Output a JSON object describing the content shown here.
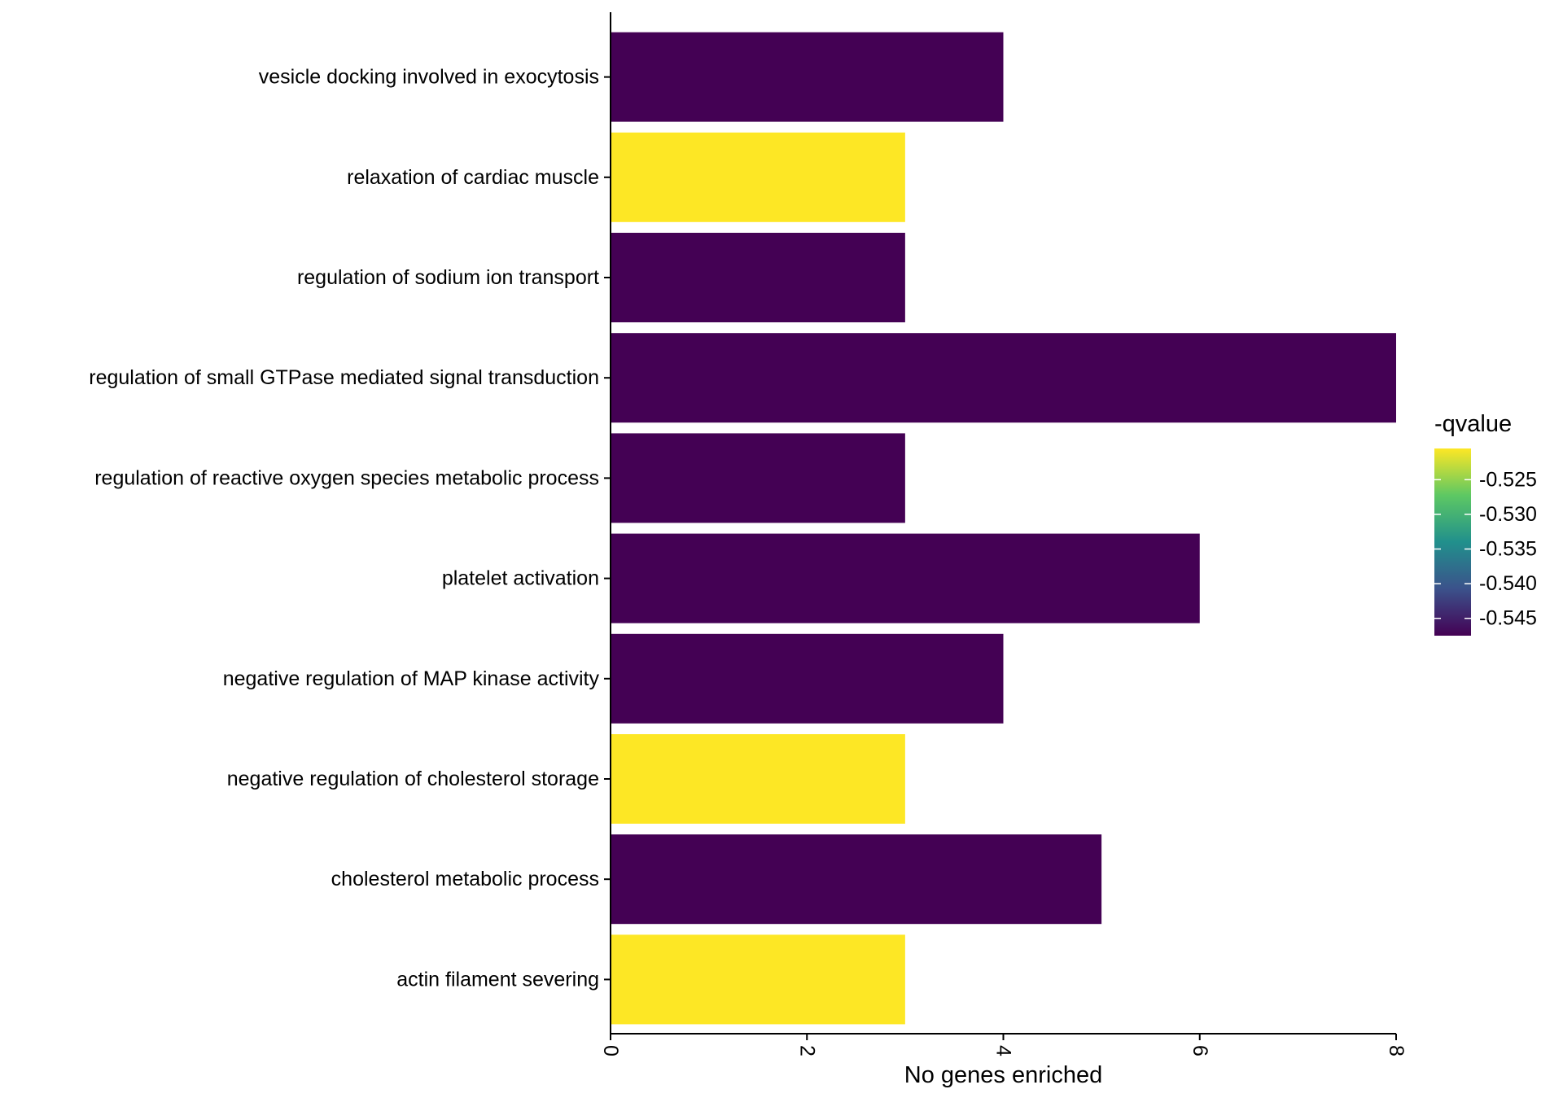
{
  "chart_data": {
    "type": "bar",
    "orientation": "horizontal",
    "title": "",
    "xlabel": "No genes enriched",
    "ylabel": "",
    "xlim": [
      0,
      8
    ],
    "x_ticks": [
      0,
      2,
      4,
      6,
      8
    ],
    "x_tick_labels": [
      "0",
      "2",
      "4",
      "6",
      "8"
    ],
    "categories": [
      "vesicle docking involved in exocytosis",
      "relaxation of cardiac muscle",
      "regulation of sodium ion transport",
      "regulation of small GTPase mediated signal transduction",
      "regulation of reactive oxygen species metabolic process",
      "platelet activation",
      "negative regulation of MAP kinase activity",
      "negative regulation of cholesterol storage",
      "cholesterol metabolic process",
      "actin filament severing"
    ],
    "values": [
      4,
      3,
      3,
      8,
      3,
      6,
      4,
      3,
      5,
      3
    ],
    "fill_values": [
      -0.5475,
      -0.5205,
      -0.5475,
      -0.5475,
      -0.5475,
      -0.5475,
      -0.5475,
      -0.5205,
      -0.5475,
      -0.5205
    ],
    "legend": {
      "title": "-qvalue",
      "placement": "right",
      "tick_values": [
        -0.525,
        -0.53,
        -0.535,
        -0.54,
        -0.545
      ],
      "tick_labels": [
        "-0.525",
        "-0.530",
        "-0.535",
        "-0.540",
        "-0.545"
      ],
      "range": [
        -0.5475,
        -0.5205
      ]
    },
    "colors": {
      "low": "#440154",
      "high": "#FDE725",
      "viridis_stops": [
        "#440154",
        "#3B528B",
        "#21908C",
        "#5DC863",
        "#FDE725"
      ]
    },
    "grid": false
  }
}
